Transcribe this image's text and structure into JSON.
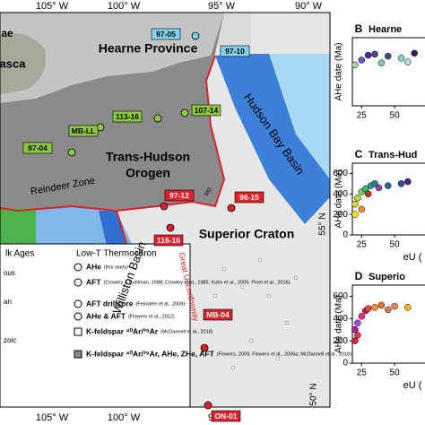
{
  "map": {
    "lon_top": [
      "105° W",
      "100° W",
      "95° W",
      "90° W"
    ],
    "lon_bottom": [
      "105° W",
      "100° W",
      "95° W"
    ],
    "lat": [
      "55° N",
      "50° N"
    ],
    "regions": {
      "hearne": "Hearne Province",
      "thu1": "Trans-Hudson",
      "thu2": "Orogen",
      "superior": "Superior Craton",
      "hudson": "Hudson Bay Basin",
      "williston": "Williston Basin",
      "reindeer": "Reindeer Zone",
      "unconf": "Great Unconformity",
      "cut1": "ae",
      "cut2": "asca",
      "small": "592"
    },
    "samples": [
      {
        "label": "97-05",
        "color": "#7fd3ee"
      },
      {
        "label": "97-10",
        "color": "#7fd3ee"
      },
      {
        "label": "113-16",
        "color": "#8dc63f"
      },
      {
        "label": "107-14",
        "color": "#8dc63f"
      },
      {
        "label": "MB-LL",
        "color": "#8dc63f"
      },
      {
        "label": "97-04",
        "color": "#8dc63f"
      },
      {
        "label": "97-12",
        "color": "#e2202a"
      },
      {
        "label": "96-15",
        "color": "#e2202a"
      },
      {
        "label": "116-16",
        "color": "#e2202a"
      },
      {
        "label": "MB-04",
        "color": "#e2202a"
      },
      {
        "label": "ON-01",
        "color": "#e2202a"
      }
    ]
  },
  "legend": {
    "left_title": "lk Ages",
    "right_title": "Low-T Thermochron",
    "left_items": [
      "ous",
      "an",
      "zoic"
    ],
    "items": [
      {
        "label": "AHe",
        "ref": "(this study)"
      },
      {
        "label": "AFT",
        "ref": "(Crowley & Kuhlman, 1988; Crowley et al., 1985; Kohn et al., 2005; Pinet et al., 2016)"
      },
      {
        "label": "AFT drillcore",
        "ref": "(Feinstein et al., 2009)"
      },
      {
        "label": "AHe & AFT",
        "ref": "(Flowers et al., 2012)"
      },
      {
        "label": "K-feldspar ⁴⁰Ar/³⁹Ar",
        "ref": "(McDannell et al., 2018)"
      },
      {
        "label": "K-feldspar ⁴⁰Ar/³⁹Ar, AHe, ZHe, AFT",
        "ref": "(Flowers, 2009; Flowers et al., 2006a; McDannell et al., 2018)"
      }
    ]
  },
  "panels": [
    {
      "type": "scatter",
      "letter": "B",
      "title": "Hearne",
      "ylabel": "AHe date (Ma)",
      "xlim": [
        18,
        90
      ],
      "xticks": [
        25,
        50
      ],
      "ylim": [
        0,
        700
      ],
      "yticks": [],
      "x": [
        20,
        25,
        30,
        35,
        40,
        45,
        55,
        60,
        65
      ],
      "y": [
        420,
        470,
        520,
        530,
        440,
        510,
        490,
        450,
        540
      ],
      "colors": [
        "#9ed9a0",
        "#6a5acd",
        "#4b2991",
        "#5b3fa0",
        "#7fc8c0",
        "#3e4a9a",
        "#8fd0c8",
        "#b0e0e6",
        "#2c1f70"
      ]
    },
    {
      "type": "scatter",
      "letter": "C",
      "title": "Trans-Hud",
      "ylabel": "AHe date (Ma)",
      "xlabel": "eU (",
      "xlim": [
        18,
        90
      ],
      "xticks": [
        25,
        50
      ],
      "ylim": [
        0,
        700
      ],
      "yticks": [
        0,
        200,
        400,
        600
      ],
      "x": [
        20,
        20,
        22,
        25,
        25,
        28,
        30,
        32,
        35,
        38,
        45,
        55,
        60
      ],
      "y": [
        200,
        300,
        360,
        250,
        420,
        450,
        400,
        480,
        500,
        460,
        480,
        500,
        520
      ],
      "colors": [
        "#f7e225",
        "#e8d42c",
        "#b5de2b",
        "#f28e2b",
        "#6ece58",
        "#35b779",
        "#c0392b",
        "#1f9e89",
        "#26828e",
        "#8e44ad",
        "#31688e",
        "#3e4989",
        "#482878"
      ]
    },
    {
      "type": "scatter",
      "letter": "D",
      "title": "Superio",
      "ylabel": "AHe date (Ma)",
      "xlabel": "eU (",
      "xlim": [
        18,
        90
      ],
      "xticks": [
        25,
        50
      ],
      "ylim": [
        0,
        700
      ],
      "yticks": [
        0,
        200,
        400,
        600
      ],
      "x": [
        20,
        20,
        22,
        22,
        25,
        28,
        30,
        35,
        40,
        45,
        50,
        60
      ],
      "y": [
        200,
        300,
        250,
        360,
        420,
        470,
        490,
        500,
        520,
        480,
        510,
        500
      ],
      "colors": [
        "#d7263d",
        "#b5179e",
        "#e63946",
        "#9d4edd",
        "#f72585",
        "#c9184a",
        "#f94144",
        "#f8961e",
        "#f3722c",
        "#e07a5f",
        "#f9844a",
        "#ffb703"
      ]
    }
  ]
}
